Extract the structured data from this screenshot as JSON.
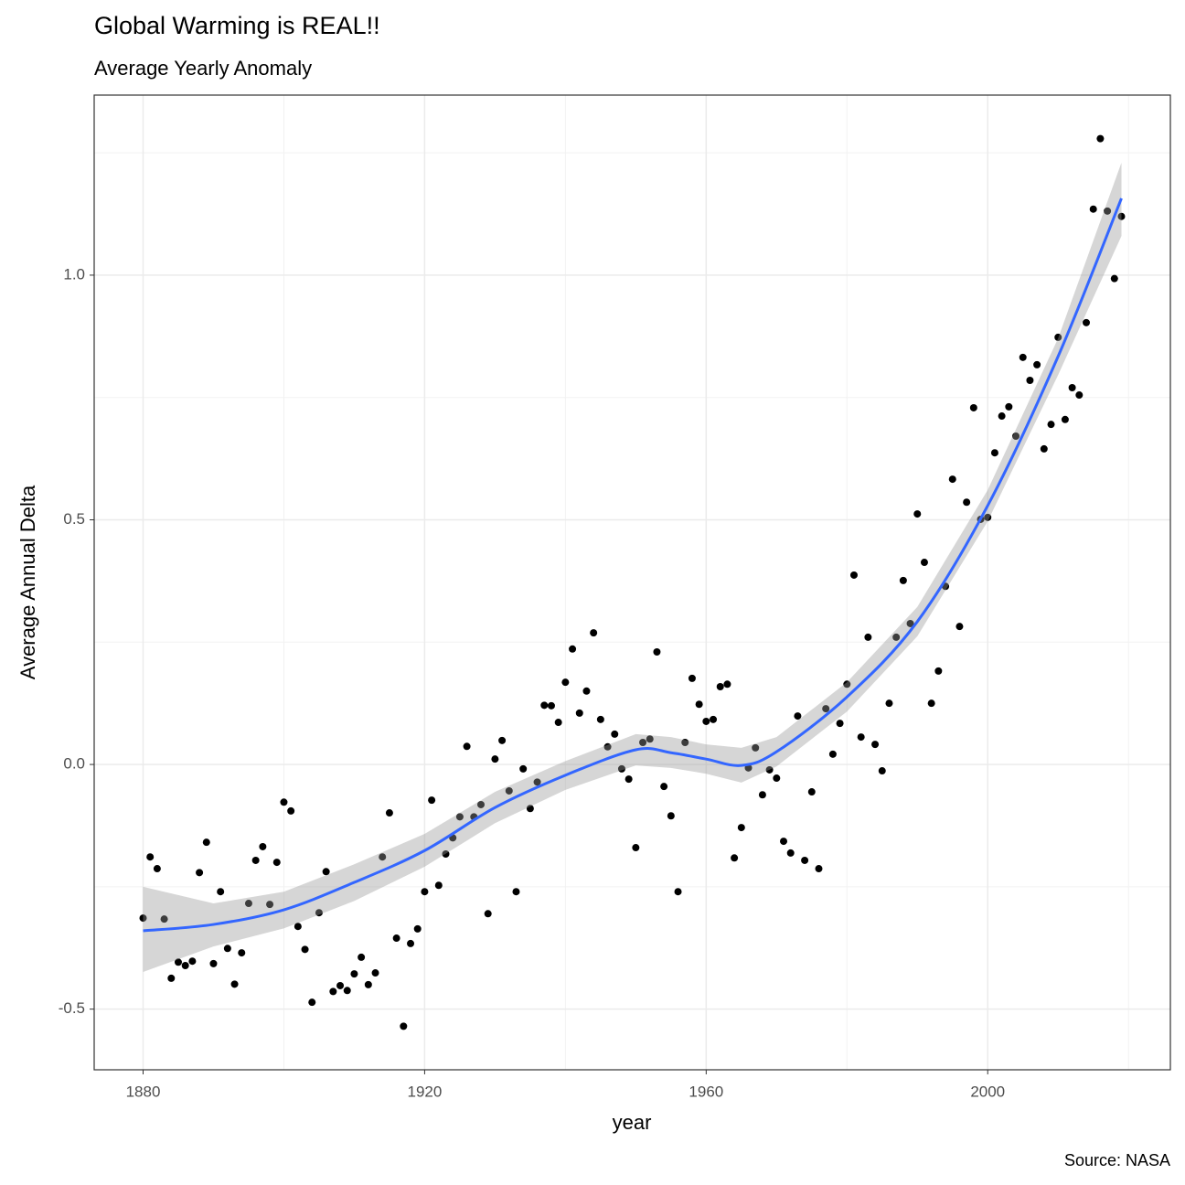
{
  "chart_data": {
    "type": "scatter",
    "title": "Global Warming is REAL!!",
    "subtitle": "Average Yearly Anomaly",
    "x_label": "year",
    "y_label": "Average Annual Delta",
    "caption": "Source: NASA",
    "xlim": [
      1873.05,
      2025.95
    ],
    "ylim": [
      -0.624,
      1.368
    ],
    "xticks": [
      1880,
      1920,
      1960,
      2000
    ],
    "yticks": [
      -0.5,
      {
        "value": 0,
        "label": "0.0"
      },
      0.5,
      {
        "value": 1,
        "label": "1.0"
      }
    ],
    "grid": true,
    "x": [
      1880,
      1881,
      1882,
      1883,
      1884,
      1885,
      1886,
      1887,
      1888,
      1889,
      1890,
      1891,
      1892,
      1893,
      1894,
      1895,
      1896,
      1897,
      1898,
      1899,
      1900,
      1901,
      1902,
      1903,
      1904,
      1905,
      1906,
      1907,
      1908,
      1909,
      1910,
      1911,
      1912,
      1913,
      1914,
      1915,
      1916,
      1917,
      1918,
      1919,
      1920,
      1921,
      1922,
      1923,
      1924,
      1925,
      1926,
      1927,
      1928,
      1929,
      1930,
      1931,
      1932,
      1933,
      1934,
      1935,
      1936,
      1937,
      1938,
      1939,
      1940,
      1941,
      1942,
      1943,
      1944,
      1945,
      1946,
      1947,
      1948,
      1949,
      1950,
      1951,
      1952,
      1953,
      1954,
      1955,
      1956,
      1957,
      1958,
      1959,
      1960,
      1961,
      1962,
      1963,
      1964,
      1965,
      1966,
      1967,
      1968,
      1969,
      1970,
      1971,
      1972,
      1973,
      1974,
      1975,
      1976,
      1977,
      1978,
      1979,
      1980,
      1981,
      1982,
      1983,
      1984,
      1985,
      1986,
      1987,
      1988,
      1989,
      1990,
      1991,
      1992,
      1993,
      1994,
      1995,
      1996,
      1997,
      1998,
      1999,
      2000,
      2001,
      2002,
      2003,
      2004,
      2005,
      2006,
      2007,
      2008,
      2009,
      2010,
      2011,
      2012,
      2013,
      2014,
      2015,
      2016,
      2017,
      2018,
      2019
    ],
    "series": [
      {
        "color": "#000000",
        "values": [
          -0.314,
          -0.189,
          -0.213,
          -0.316,
          -0.437,
          -0.404,
          -0.411,
          -0.402,
          -0.221,
          -0.159,
          -0.407,
          -0.26,
          -0.376,
          -0.449,
          -0.385,
          -0.284,
          -0.196,
          -0.168,
          -0.286,
          -0.2,
          -0.077,
          -0.095,
          -0.331,
          -0.378,
          -0.486,
          -0.303,
          -0.219,
          -0.464,
          -0.452,
          -0.462,
          -0.428,
          -0.394,
          -0.45,
          -0.426,
          -0.189,
          -0.099,
          -0.355,
          -0.535,
          -0.366,
          -0.336,
          -0.26,
          -0.073,
          -0.247,
          -0.183,
          -0.15,
          -0.107,
          0.037,
          -0.107,
          -0.082,
          -0.305,
          0.011,
          0.049,
          -0.054,
          -0.26,
          -0.009,
          -0.09,
          -0.036,
          0.121,
          0.12,
          0.086,
          0.168,
          0.236,
          0.105,
          0.15,
          0.269,
          0.092,
          0.036,
          0.062,
          -0.009,
          -0.03,
          -0.17,
          0.045,
          0.052,
          0.23,
          -0.045,
          -0.105,
          -0.26,
          0.045,
          0.176,
          0.123,
          0.088,
          0.092,
          0.159,
          0.164,
          -0.191,
          -0.129,
          -0.007,
          0.034,
          -0.062,
          -0.011,
          -0.028,
          -0.157,
          -0.181,
          0.099,
          -0.196,
          -0.056,
          -0.213,
          0.114,
          0.021,
          0.084,
          0.164,
          0.387,
          0.056,
          0.26,
          0.041,
          -0.013,
          0.125,
          0.26,
          0.376,
          0.288,
          0.512,
          0.413,
          0.125,
          0.191,
          0.364,
          0.583,
          0.282,
          0.536,
          0.729,
          0.501,
          0.505,
          0.637,
          0.712,
          0.731,
          0.671,
          0.832,
          0.785,
          0.817,
          0.645,
          0.695,
          0.873,
          0.705,
          0.77,
          0.755,
          0.903,
          1.135,
          1.279,
          1.131,
          0.993,
          1.12
        ]
      }
    ],
    "smooth": {
      "color": "#3366ff",
      "band_color": "#999999",
      "band_alpha": 0.4,
      "x": [
        1880,
        1890,
        1900,
        1910,
        1920,
        1930,
        1940,
        1950,
        1955,
        1960,
        1965,
        1970,
        1980,
        1990,
        2000,
        2010,
        2019
      ],
      "values": [
        -0.34,
        -0.327,
        -0.297,
        -0.241,
        -0.176,
        -0.088,
        -0.022,
        0.03,
        0.024,
        0.011,
        -0.002,
        0.026,
        0.138,
        0.292,
        0.529,
        0.834,
        1.157
      ],
      "lower": [
        -0.424,
        -0.372,
        -0.335,
        -0.279,
        -0.209,
        -0.12,
        -0.052,
        -0.002,
        -0.007,
        -0.019,
        -0.037,
        -0.004,
        0.108,
        0.262,
        0.497,
        0.796,
        1.08
      ],
      "upper": [
        -0.25,
        -0.284,
        -0.26,
        -0.204,
        -0.142,
        -0.056,
        0.007,
        0.062,
        0.056,
        0.041,
        0.034,
        0.056,
        0.168,
        0.322,
        0.561,
        0.871,
        1.23
      ]
    }
  }
}
